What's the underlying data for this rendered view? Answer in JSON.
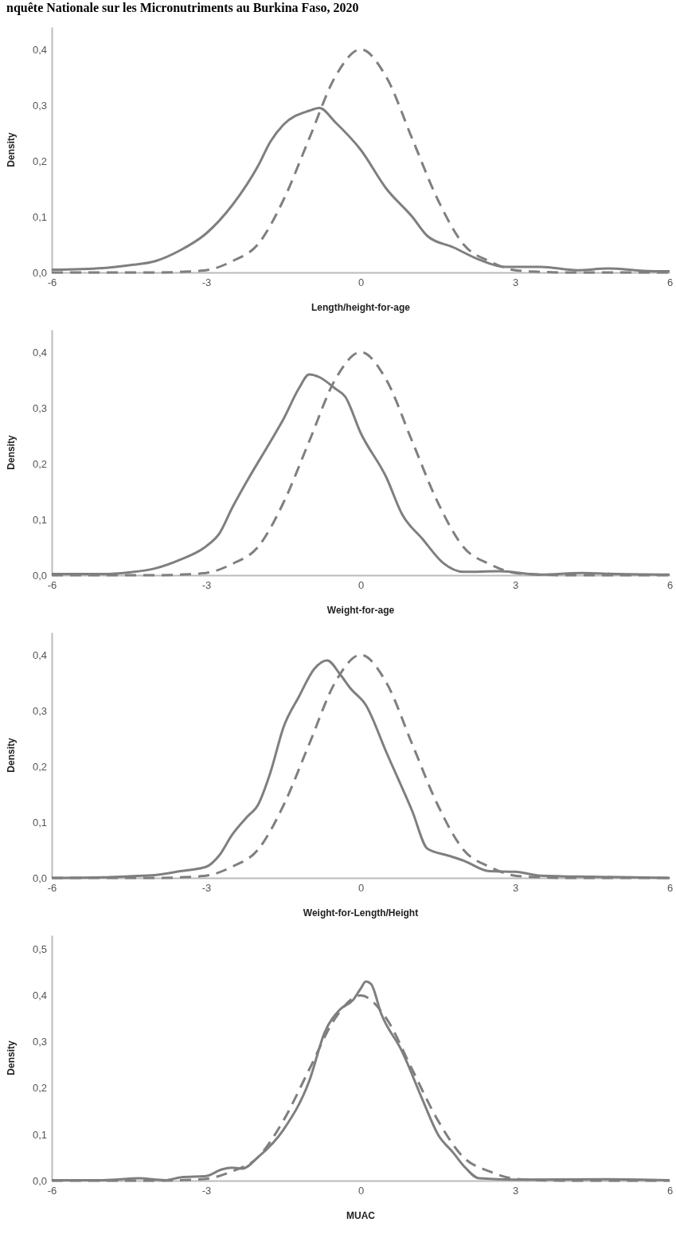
{
  "chart_data": [
    {
      "type": "line",
      "title": "nquête Nationale sur les Micronutriments au Burkina Faso, 2020",
      "xlabel": "Length/height-for-age",
      "ylabel": "Density",
      "xlim": [
        -6,
        6
      ],
      "xticks": [
        -6,
        -3,
        0,
        3,
        6
      ],
      "ylim": [
        0,
        0.44
      ],
      "yticks": [
        {
          "value": 0,
          "label": "0,0"
        },
        {
          "value": 0.1,
          "label": "0,1"
        },
        {
          "value": 0.2,
          "label": "0,2"
        },
        {
          "value": 0.3,
          "label": "0,3"
        },
        {
          "value": 0.4,
          "label": "0,4"
        }
      ],
      "grid": false,
      "marker": "none",
      "series": [
        {
          "color": "#7f7f7f",
          "line_style": "solid",
          "x": [
            -6,
            -5,
            -4.5,
            -4,
            -3.5,
            -3,
            -2.5,
            -2,
            -1.75,
            -1.5,
            -1,
            -0.8,
            -0.5,
            0,
            0.5,
            1,
            1.3,
            1.8,
            2.3,
            2.8,
            3.5,
            4.2,
            4.8,
            5.5,
            6
          ],
          "values": [
            0.005,
            0.008,
            0.013,
            0.02,
            0.04,
            0.07,
            0.12,
            0.19,
            0.235,
            0.265,
            0.29,
            0.295,
            0.27,
            0.22,
            0.15,
            0.1,
            0.065,
            0.045,
            0.023,
            0.01,
            0.01,
            0.004,
            0.007,
            0.003,
            0.002
          ]
        },
        {
          "color": "#7f7f7f",
          "line_style": "dashed",
          "x": [
            -6,
            -4,
            -3.5,
            -3,
            -2.5,
            -2,
            -1.5,
            -1,
            -0.5,
            0,
            0.5,
            1,
            1.5,
            2,
            2.5,
            3,
            3.5,
            4,
            6
          ],
          "values": [
            0,
            0,
            0.001,
            0.004,
            0.02,
            0.05,
            0.13,
            0.24,
            0.35,
            0.4,
            0.35,
            0.24,
            0.13,
            0.05,
            0.02,
            0.004,
            0.001,
            0,
            0
          ]
        }
      ]
    },
    {
      "type": "line",
      "xlabel": "Weight-for-age",
      "ylabel": "Density",
      "xlim": [
        -6,
        6
      ],
      "xticks": [
        -6,
        -3,
        0,
        3,
        6
      ],
      "ylim": [
        0,
        0.44
      ],
      "yticks": [
        {
          "value": 0,
          "label": "0,0"
        },
        {
          "value": 0.1,
          "label": "0,1"
        },
        {
          "value": 0.2,
          "label": "0,2"
        },
        {
          "value": 0.3,
          "label": "0,3"
        },
        {
          "value": 0.4,
          "label": "0,4"
        }
      ],
      "grid": false,
      "marker": "none",
      "series": [
        {
          "color": "#7f7f7f",
          "line_style": "solid",
          "x": [
            -6,
            -5,
            -4.5,
            -4,
            -3.5,
            -3,
            -2.75,
            -2.5,
            -2.2,
            -1.75,
            -1.5,
            -1.2,
            -1,
            -0.8,
            -0.5,
            -0.3,
            0,
            0.5,
            0.8,
            1.2,
            1.6,
            2,
            2.7,
            3.5,
            4.3,
            5,
            6
          ],
          "values": [
            0.002,
            0.002,
            0.005,
            0.012,
            0.028,
            0.052,
            0.074,
            0.12,
            0.17,
            0.24,
            0.28,
            0.335,
            0.36,
            0.355,
            0.335,
            0.32,
            0.255,
            0.175,
            0.11,
            0.065,
            0.022,
            0.006,
            0.007,
            0.001,
            0.004,
            0.002,
            0.001
          ]
        },
        {
          "color": "#7f7f7f",
          "line_style": "dashed",
          "x": [
            -6,
            -4,
            -3.5,
            -3,
            -2.5,
            -2,
            -1.5,
            -1,
            -0.5,
            0,
            0.5,
            1,
            1.5,
            2,
            2.5,
            3,
            3.5,
            4,
            6
          ],
          "values": [
            0,
            0,
            0.001,
            0.004,
            0.02,
            0.05,
            0.13,
            0.24,
            0.35,
            0.4,
            0.35,
            0.24,
            0.13,
            0.05,
            0.02,
            0.004,
            0.001,
            0,
            0
          ]
        }
      ]
    },
    {
      "type": "line",
      "xlabel": "Weight-for-Length/Height",
      "ylabel": "Density",
      "xlim": [
        -6,
        6
      ],
      "xticks": [
        -6,
        -3,
        0,
        3,
        6
      ],
      "ylim": [
        0,
        0.44
      ],
      "yticks": [
        {
          "value": 0,
          "label": "0,0"
        },
        {
          "value": 0.1,
          "label": "0,1"
        },
        {
          "value": 0.2,
          "label": "0,2"
        },
        {
          "value": 0.3,
          "label": "0,3"
        },
        {
          "value": 0.4,
          "label": "0,4"
        }
      ],
      "grid": false,
      "marker": "none",
      "series": [
        {
          "color": "#7f7f7f",
          "line_style": "solid",
          "x": [
            -6,
            -5,
            -4.5,
            -4,
            -3.5,
            -3,
            -2.75,
            -2.5,
            -2.2,
            -2,
            -1.75,
            -1.5,
            -1.2,
            -0.9,
            -0.65,
            -0.4,
            -0.2,
            0.1,
            0.5,
            1,
            1.3,
            1.7,
            2,
            2.5,
            3,
            3.5,
            4.5,
            6
          ],
          "values": [
            0,
            0.001,
            0.003,
            0.005,
            0.012,
            0.02,
            0.04,
            0.077,
            0.11,
            0.13,
            0.19,
            0.27,
            0.325,
            0.375,
            0.39,
            0.365,
            0.34,
            0.31,
            0.225,
            0.12,
            0.052,
            0.04,
            0.031,
            0.012,
            0.011,
            0.004,
            0.002,
            0
          ]
        },
        {
          "color": "#7f7f7f",
          "line_style": "dashed",
          "x": [
            -6,
            -4,
            -3.5,
            -3,
            -2.5,
            -2,
            -1.5,
            -1,
            -0.5,
            0,
            0.5,
            1,
            1.5,
            2,
            2.5,
            3,
            3.5,
            4,
            6
          ],
          "values": [
            0,
            0,
            0.001,
            0.004,
            0.02,
            0.05,
            0.13,
            0.24,
            0.35,
            0.4,
            0.35,
            0.24,
            0.13,
            0.05,
            0.02,
            0.004,
            0.001,
            0,
            0
          ]
        }
      ]
    },
    {
      "type": "line",
      "xlabel": "MUAC",
      "ylabel": "Density",
      "xlim": [
        -6,
        6
      ],
      "xticks": [
        -6,
        -3,
        0,
        3,
        6
      ],
      "ylim": [
        0,
        0.53
      ],
      "yticks": [
        {
          "value": 0,
          "label": "0,0"
        },
        {
          "value": 0.1,
          "label": "0,1"
        },
        {
          "value": 0.2,
          "label": "0,2"
        },
        {
          "value": 0.3,
          "label": "0,3"
        },
        {
          "value": 0.4,
          "label": "0,4"
        },
        {
          "value": 0.5,
          "label": "0,5"
        }
      ],
      "grid": false,
      "marker": "none",
      "series": [
        {
          "color": "#7f7f7f",
          "line_style": "solid",
          "x": [
            -6,
            -5,
            -4.3,
            -3.8,
            -3.5,
            -3,
            -2.7,
            -2.5,
            -2.3,
            -2,
            -1.5,
            -1,
            -0.7,
            -0.4,
            -0.15,
            0,
            0.1,
            0.2,
            0.4,
            0.8,
            1.2,
            1.5,
            1.8,
            2,
            2.3,
            3,
            4.8,
            6
          ],
          "values": [
            0.001,
            0.001,
            0.005,
            0.001,
            0.007,
            0.01,
            0.024,
            0.028,
            0.026,
            0.05,
            0.11,
            0.215,
            0.32,
            0.37,
            0.39,
            0.415,
            0.43,
            0.425,
            0.36,
            0.28,
            0.175,
            0.1,
            0.06,
            0.032,
            0.005,
            0.002,
            0.003,
            0.001
          ]
        },
        {
          "color": "#7f7f7f",
          "line_style": "dashed",
          "x": [
            -6,
            -4,
            -3.5,
            -3,
            -2.5,
            -2,
            -1.5,
            -1,
            -0.5,
            0,
            0.5,
            1,
            1.5,
            2,
            2.5,
            3,
            3.5,
            4,
            6
          ],
          "values": [
            0,
            0,
            0.001,
            0.004,
            0.02,
            0.05,
            0.13,
            0.24,
            0.35,
            0.4,
            0.35,
            0.24,
            0.13,
            0.05,
            0.02,
            0.004,
            0.001,
            0,
            0
          ]
        }
      ]
    }
  ]
}
